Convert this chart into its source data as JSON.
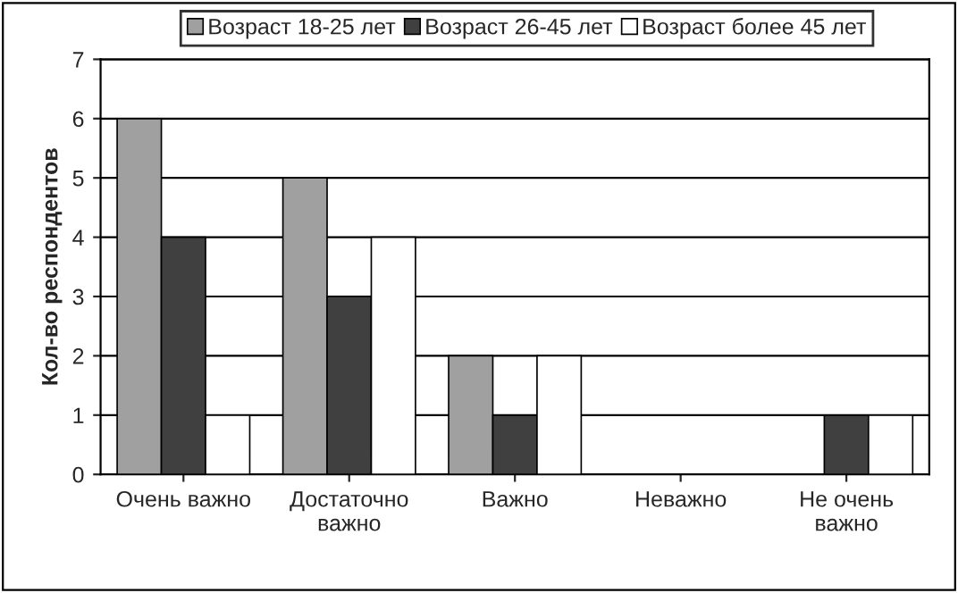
{
  "chart_data": {
    "type": "bar",
    "ylabel": "Кол-во респондентов",
    "categories": [
      "Очень важно",
      "Достаточно\nважно",
      "Важно",
      "Неважно",
      "Не очень\nважно"
    ],
    "series": [
      {
        "name": "Возраст 18-25 лет",
        "color": "#a0a0a0",
        "values": [
          6,
          5,
          2,
          0,
          0
        ]
      },
      {
        "name": "Возраст 26-45 лет",
        "color": "#404040",
        "values": [
          4,
          3,
          1,
          0,
          1
        ]
      },
      {
        "name": "Возраст более 45 лет",
        "color": "#ffffff",
        "values": [
          1,
          4,
          2,
          0,
          1
        ]
      }
    ],
    "ylim": [
      0,
      7
    ],
    "yticks": [
      0,
      1,
      2,
      3,
      4,
      5,
      6,
      7
    ],
    "grid": "y",
    "legend": "top"
  }
}
